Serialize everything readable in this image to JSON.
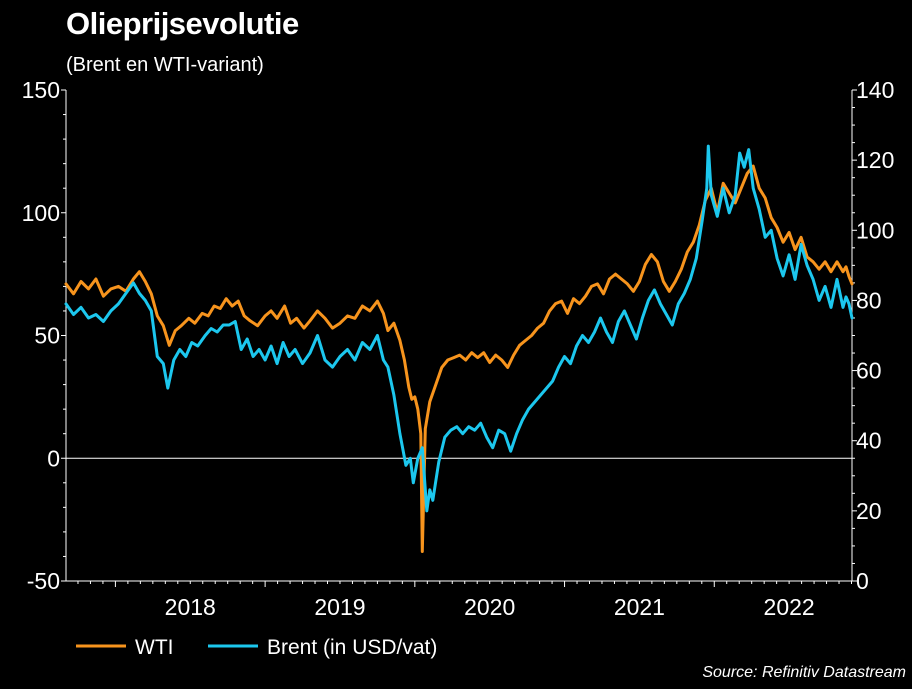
{
  "chart_data": {
    "type": "line",
    "title": "Olieprijsevolutie",
    "subtitle": "(Brent en WTI-variant)",
    "source": "Source: Refinitiv Datastream",
    "x_unit": "year (decimal)",
    "xlim": [
      2017.67,
      2022.92
    ],
    "x_tick_labels": [
      {
        "label": "2018",
        "x": 2018.0
      },
      {
        "label": "2019",
        "x": 2019.0
      },
      {
        "label": "2020",
        "x": 2020.0
      },
      {
        "label": "2021",
        "x": 2021.0
      },
      {
        "label": "2022",
        "x": 2022.0
      }
    ],
    "left_axis": {
      "ylim": [
        -50,
        150
      ],
      "ticks": [
        "150",
        "100",
        "50",
        "0",
        "-50"
      ],
      "tick_values": [
        150,
        100,
        50,
        0,
        -50
      ]
    },
    "right_axis": {
      "ylim": [
        0,
        140
      ],
      "ticks": [
        "140",
        "120",
        "100",
        "80",
        "60",
        "40",
        "20",
        "0"
      ],
      "tick_values": [
        140,
        120,
        100,
        80,
        60,
        40,
        20,
        0
      ]
    },
    "series": [
      {
        "name": "WTI",
        "axis": "left",
        "color": "#F7941D",
        "points": [
          [
            2017.67,
            71
          ],
          [
            2017.72,
            67
          ],
          [
            2017.77,
            72
          ],
          [
            2017.82,
            69
          ],
          [
            2017.87,
            73
          ],
          [
            2017.92,
            66
          ],
          [
            2017.97,
            69
          ],
          [
            2018.02,
            70
          ],
          [
            2018.07,
            68
          ],
          [
            2018.12,
            73
          ],
          [
            2018.16,
            76
          ],
          [
            2018.2,
            72
          ],
          [
            2018.24,
            67
          ],
          [
            2018.28,
            58
          ],
          [
            2018.32,
            54
          ],
          [
            2018.36,
            46
          ],
          [
            2018.4,
            52
          ],
          [
            2018.44,
            54
          ],
          [
            2018.49,
            57
          ],
          [
            2018.53,
            55
          ],
          [
            2018.58,
            59
          ],
          [
            2018.62,
            58
          ],
          [
            2018.66,
            62
          ],
          [
            2018.7,
            61
          ],
          [
            2018.74,
            65
          ],
          [
            2018.78,
            62
          ],
          [
            2018.82,
            64
          ],
          [
            2018.86,
            58
          ],
          [
            2018.9,
            56
          ],
          [
            2018.95,
            54
          ],
          [
            2019.0,
            58
          ],
          [
            2019.04,
            60
          ],
          [
            2019.08,
            57
          ],
          [
            2019.13,
            62
          ],
          [
            2019.17,
            55
          ],
          [
            2019.21,
            57
          ],
          [
            2019.26,
            53
          ],
          [
            2019.3,
            56
          ],
          [
            2019.35,
            60
          ],
          [
            2019.4,
            57
          ],
          [
            2019.45,
            53
          ],
          [
            2019.5,
            55
          ],
          [
            2019.55,
            58
          ],
          [
            2019.6,
            57
          ],
          [
            2019.65,
            62
          ],
          [
            2019.7,
            60
          ],
          [
            2019.75,
            64
          ],
          [
            2019.79,
            59
          ],
          [
            2019.82,
            52
          ],
          [
            2019.86,
            55
          ],
          [
            2019.9,
            48
          ],
          [
            2019.93,
            40
          ],
          [
            2019.96,
            29
          ],
          [
            2019.98,
            24
          ],
          [
            2020.0,
            25
          ],
          [
            2020.02,
            20
          ],
          [
            2020.04,
            10
          ],
          [
            2020.05,
            -38
          ],
          [
            2020.07,
            12
          ],
          [
            2020.1,
            23
          ],
          [
            2020.14,
            30
          ],
          [
            2020.18,
            37
          ],
          [
            2020.22,
            40
          ],
          [
            2020.26,
            41
          ],
          [
            2020.3,
            42
          ],
          [
            2020.34,
            40
          ],
          [
            2020.38,
            43
          ],
          [
            2020.42,
            41
          ],
          [
            2020.46,
            43
          ],
          [
            2020.5,
            39
          ],
          [
            2020.54,
            42
          ],
          [
            2020.58,
            40
          ],
          [
            2020.62,
            37
          ],
          [
            2020.66,
            42
          ],
          [
            2020.7,
            46
          ],
          [
            2020.74,
            48
          ],
          [
            2020.78,
            50
          ],
          [
            2020.82,
            53
          ],
          [
            2020.86,
            55
          ],
          [
            2020.9,
            60
          ],
          [
            2020.94,
            63
          ],
          [
            2020.98,
            64
          ],
          [
            2021.02,
            59
          ],
          [
            2021.06,
            65
          ],
          [
            2021.1,
            63
          ],
          [
            2021.14,
            66
          ],
          [
            2021.18,
            70
          ],
          [
            2021.22,
            71
          ],
          [
            2021.26,
            67
          ],
          [
            2021.3,
            73
          ],
          [
            2021.34,
            75
          ],
          [
            2021.38,
            73
          ],
          [
            2021.42,
            71
          ],
          [
            2021.46,
            68
          ],
          [
            2021.5,
            72
          ],
          [
            2021.54,
            79
          ],
          [
            2021.58,
            83
          ],
          [
            2021.62,
            80
          ],
          [
            2021.66,
            72
          ],
          [
            2021.7,
            68
          ],
          [
            2021.74,
            72
          ],
          [
            2021.78,
            77
          ],
          [
            2021.82,
            84
          ],
          [
            2021.86,
            88
          ],
          [
            2021.9,
            95
          ],
          [
            2021.94,
            105
          ],
          [
            2021.98,
            110
          ],
          [
            2022.02,
            100
          ],
          [
            2022.06,
            112
          ],
          [
            2022.1,
            108
          ],
          [
            2022.14,
            104
          ],
          [
            2022.18,
            110
          ],
          [
            2022.22,
            116
          ],
          [
            2022.26,
            119
          ],
          [
            2022.3,
            110
          ],
          [
            2022.34,
            106
          ],
          [
            2022.38,
            98
          ],
          [
            2022.42,
            94
          ],
          [
            2022.46,
            88
          ],
          [
            2022.5,
            92
          ],
          [
            2022.54,
            85
          ],
          [
            2022.58,
            90
          ],
          [
            2022.62,
            82
          ],
          [
            2022.66,
            80
          ],
          [
            2022.7,
            77
          ],
          [
            2022.74,
            80
          ],
          [
            2022.78,
            76
          ],
          [
            2022.82,
            80
          ],
          [
            2022.86,
            76
          ],
          [
            2022.88,
            78
          ],
          [
            2022.9,
            74
          ],
          [
            2022.92,
            71
          ]
        ]
      },
      {
        "name": "Brent (in USD/vat)",
        "axis": "right",
        "color": "#1CC7EE",
        "points": [
          [
            2017.67,
            79
          ],
          [
            2017.72,
            76
          ],
          [
            2017.77,
            78
          ],
          [
            2017.82,
            75
          ],
          [
            2017.87,
            76
          ],
          [
            2017.92,
            74
          ],
          [
            2017.97,
            77
          ],
          [
            2018.02,
            79
          ],
          [
            2018.07,
            82
          ],
          [
            2018.12,
            85
          ],
          [
            2018.16,
            82
          ],
          [
            2018.2,
            80
          ],
          [
            2018.24,
            77
          ],
          [
            2018.28,
            64
          ],
          [
            2018.32,
            62
          ],
          [
            2018.35,
            55
          ],
          [
            2018.39,
            63
          ],
          [
            2018.43,
            66
          ],
          [
            2018.47,
            64
          ],
          [
            2018.51,
            68
          ],
          [
            2018.55,
            67
          ],
          [
            2018.6,
            70
          ],
          [
            2018.64,
            72
          ],
          [
            2018.68,
            71
          ],
          [
            2018.72,
            73
          ],
          [
            2018.76,
            73
          ],
          [
            2018.8,
            74
          ],
          [
            2018.84,
            66
          ],
          [
            2018.88,
            69
          ],
          [
            2018.92,
            64
          ],
          [
            2018.96,
            66
          ],
          [
            2019.0,
            63
          ],
          [
            2019.04,
            67
          ],
          [
            2019.08,
            62
          ],
          [
            2019.12,
            68
          ],
          [
            2019.16,
            64
          ],
          [
            2019.2,
            66
          ],
          [
            2019.25,
            62
          ],
          [
            2019.3,
            65
          ],
          [
            2019.35,
            70
          ],
          [
            2019.4,
            63
          ],
          [
            2019.45,
            61
          ],
          [
            2019.5,
            64
          ],
          [
            2019.55,
            66
          ],
          [
            2019.6,
            63
          ],
          [
            2019.65,
            68
          ],
          [
            2019.7,
            66
          ],
          [
            2019.75,
            70
          ],
          [
            2019.79,
            63
          ],
          [
            2019.82,
            61
          ],
          [
            2019.86,
            53
          ],
          [
            2019.9,
            42
          ],
          [
            2019.94,
            33
          ],
          [
            2019.97,
            35
          ],
          [
            2019.99,
            28
          ],
          [
            2020.02,
            35
          ],
          [
            2020.05,
            38
          ],
          [
            2020.08,
            20
          ],
          [
            2020.1,
            26
          ],
          [
            2020.12,
            23
          ],
          [
            2020.16,
            34
          ],
          [
            2020.2,
            41
          ],
          [
            2020.24,
            43
          ],
          [
            2020.28,
            44
          ],
          [
            2020.32,
            42
          ],
          [
            2020.36,
            44
          ],
          [
            2020.4,
            43
          ],
          [
            2020.44,
            45
          ],
          [
            2020.48,
            41
          ],
          [
            2020.52,
            38
          ],
          [
            2020.56,
            43
          ],
          [
            2020.6,
            42
          ],
          [
            2020.64,
            37
          ],
          [
            2020.68,
            42
          ],
          [
            2020.72,
            46
          ],
          [
            2020.76,
            49
          ],
          [
            2020.8,
            51
          ],
          [
            2020.84,
            53
          ],
          [
            2020.88,
            55
          ],
          [
            2020.92,
            57
          ],
          [
            2020.96,
            61
          ],
          [
            2021.0,
            64
          ],
          [
            2021.04,
            62
          ],
          [
            2021.08,
            67
          ],
          [
            2021.12,
            70
          ],
          [
            2021.16,
            68
          ],
          [
            2021.2,
            71
          ],
          [
            2021.24,
            75
          ],
          [
            2021.28,
            71
          ],
          [
            2021.32,
            68
          ],
          [
            2021.36,
            74
          ],
          [
            2021.4,
            77
          ],
          [
            2021.44,
            73
          ],
          [
            2021.48,
            69
          ],
          [
            2021.52,
            75
          ],
          [
            2021.56,
            80
          ],
          [
            2021.6,
            83
          ],
          [
            2021.64,
            79
          ],
          [
            2021.68,
            76
          ],
          [
            2021.72,
            73
          ],
          [
            2021.76,
            79
          ],
          [
            2021.8,
            82
          ],
          [
            2021.84,
            86
          ],
          [
            2021.88,
            92
          ],
          [
            2021.92,
            103
          ],
          [
            2021.95,
            112
          ],
          [
            2021.96,
            124
          ],
          [
            2021.98,
            110
          ],
          [
            2022.02,
            104
          ],
          [
            2022.06,
            112
          ],
          [
            2022.1,
            105
          ],
          [
            2022.14,
            110
          ],
          [
            2022.17,
            122
          ],
          [
            2022.2,
            118
          ],
          [
            2022.23,
            123
          ],
          [
            2022.26,
            112
          ],
          [
            2022.3,
            106
          ],
          [
            2022.34,
            98
          ],
          [
            2022.38,
            100
          ],
          [
            2022.42,
            92
          ],
          [
            2022.46,
            87
          ],
          [
            2022.5,
            93
          ],
          [
            2022.54,
            86
          ],
          [
            2022.58,
            96
          ],
          [
            2022.62,
            90
          ],
          [
            2022.66,
            86
          ],
          [
            2022.7,
            80
          ],
          [
            2022.74,
            84
          ],
          [
            2022.78,
            78
          ],
          [
            2022.82,
            86
          ],
          [
            2022.86,
            78
          ],
          [
            2022.88,
            81
          ],
          [
            2022.9,
            79
          ],
          [
            2022.92,
            75
          ]
        ]
      }
    ]
  }
}
